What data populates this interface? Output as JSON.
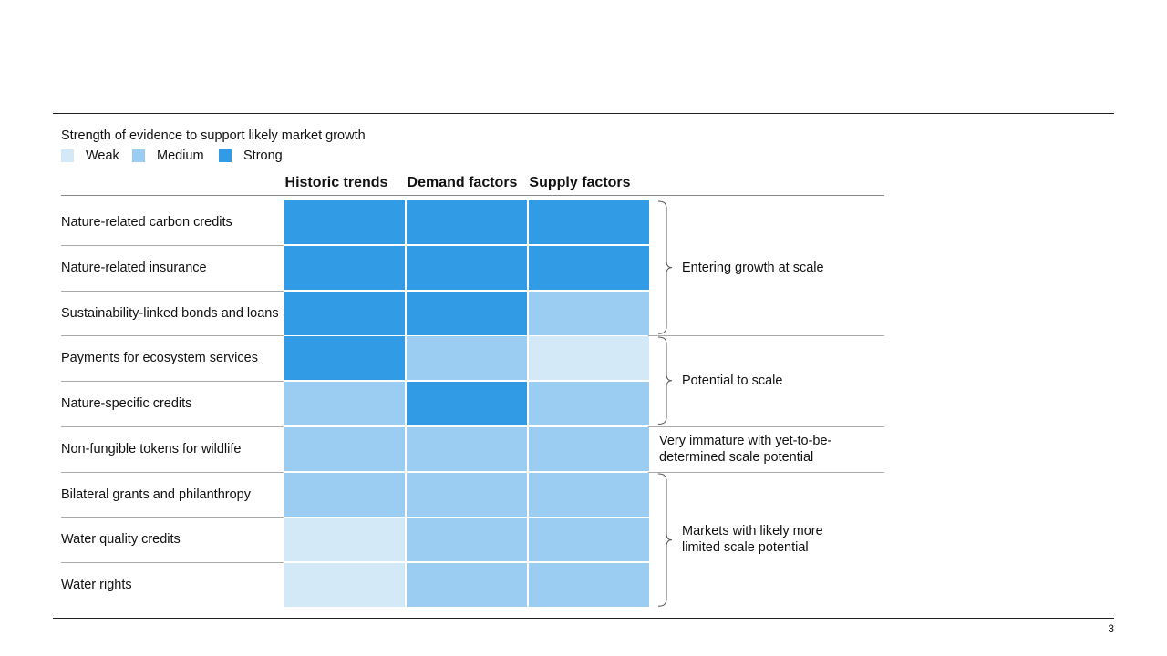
{
  "page_number": "3",
  "legend": {
    "title": "Strength of evidence to support likely market growth",
    "items": [
      {
        "label": "Weak",
        "color": "#d4e9f8"
      },
      {
        "label": "Medium",
        "color": "#9bcdf2"
      },
      {
        "label": "Strong",
        "color": "#319be6"
      }
    ]
  },
  "chart_data": {
    "type": "heatmap",
    "title": "Strength of evidence to support likely market growth",
    "columns": [
      "Historic trends",
      "Demand factors",
      "Supply factors"
    ],
    "rows": [
      {
        "label": "Nature-related carbon credits",
        "values": [
          "Strong",
          "Strong",
          "Strong"
        ]
      },
      {
        "label": "Nature-related insurance",
        "values": [
          "Strong",
          "Strong",
          "Strong"
        ]
      },
      {
        "label": "Sustainability-linked bonds and loans",
        "values": [
          "Strong",
          "Strong",
          "Medium"
        ]
      },
      {
        "label": "Payments for ecosystem services",
        "values": [
          "Strong",
          "Medium",
          "Weak"
        ]
      },
      {
        "label": "Nature-specific credits",
        "values": [
          "Medium",
          "Strong",
          "Medium"
        ]
      },
      {
        "label": "Non-fungible tokens for wildlife",
        "values": [
          "Medium",
          "Medium",
          "Medium"
        ]
      },
      {
        "label": "Bilateral grants and philanthropy",
        "values": [
          "Medium",
          "Medium",
          "Medium"
        ]
      },
      {
        "label": "Water quality credits",
        "values": [
          "Weak",
          "Medium",
          "Medium"
        ]
      },
      {
        "label": "Water rights",
        "values": [
          "Weak",
          "Medium",
          "Medium"
        ]
      }
    ],
    "groups": [
      {
        "label_lines": [
          "Entering growth at scale"
        ],
        "start_row": 0,
        "end_row": 2,
        "brace": true
      },
      {
        "label_lines": [
          "Potential to scale"
        ],
        "start_row": 3,
        "end_row": 4,
        "brace": true
      },
      {
        "label_lines": [
          "Very immature with yet-to-be-",
          "determined scale potential"
        ],
        "start_row": 5,
        "end_row": 5,
        "brace": false
      },
      {
        "label_lines": [
          "Markets with likely more",
          "limited scale potential"
        ],
        "start_row": 6,
        "end_row": 8,
        "brace": true
      }
    ],
    "scale": {
      "Weak": "#d4e9f8",
      "Medium": "#9bcdf2",
      "Strong": "#319be6"
    }
  }
}
